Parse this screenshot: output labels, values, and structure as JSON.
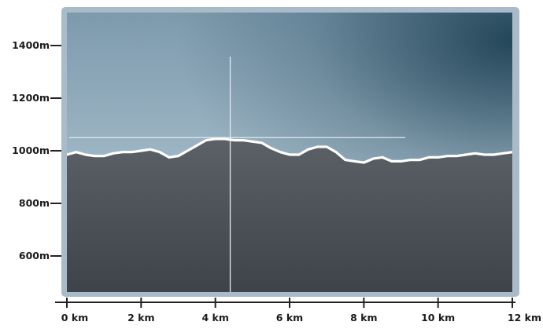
{
  "chart_data": {
    "type": "area",
    "title": "",
    "xlabel": "",
    "ylabel": "",
    "x_unit": "km",
    "y_unit": "m",
    "xlim": [
      0,
      12
    ],
    "ylim": [
      500,
      1500
    ],
    "x_ticks": [
      0,
      2,
      4,
      6,
      8,
      10,
      12
    ],
    "y_ticks": [
      600,
      800,
      1000,
      1200,
      1400
    ],
    "x_tick_labels": [
      "0 km",
      "2 km",
      "4 km",
      "6 km",
      "8 km",
      "10 km",
      "12 km"
    ],
    "y_tick_labels": [
      "600m",
      "800m",
      "1000m",
      "1200m",
      "1400m"
    ],
    "grid": false,
    "legend": "none",
    "series": [
      {
        "x": [
          0,
          0.25,
          0.5,
          0.75,
          1.0,
          1.25,
          1.5,
          1.75,
          2.0,
          2.25,
          2.5,
          2.75,
          3.0,
          3.25,
          3.5,
          3.75,
          4.0,
          4.25,
          4.5,
          4.75,
          5.0,
          5.25,
          5.5,
          5.75,
          6.0,
          6.25,
          6.5,
          6.75,
          7.0,
          7.25,
          7.5,
          7.75,
          8.0,
          8.25,
          8.5,
          8.75,
          9.0,
          9.25,
          9.5,
          9.75,
          10.0,
          10.25,
          10.5,
          10.75,
          11.0,
          11.25,
          11.5,
          11.75,
          12.0
        ],
        "values": [
          985,
          995,
          985,
          980,
          980,
          990,
          995,
          995,
          1000,
          1005,
          995,
          975,
          980,
          1000,
          1020,
          1040,
          1045,
          1045,
          1040,
          1040,
          1035,
          1030,
          1010,
          995,
          985,
          985,
          1005,
          1015,
          1015,
          995,
          965,
          960,
          955,
          970,
          975,
          960,
          960,
          965,
          965,
          975,
          975,
          980,
          980,
          985,
          990,
          985,
          985,
          990,
          995
        ]
      }
    ],
    "annotations": [
      {
        "type": "crosshair",
        "x": 4.4,
        "y": 1050
      }
    ],
    "colors": {
      "sky_top": "#7d9aad",
      "sky_mid": "#9fb7c6",
      "sky_dark": "#1f4255",
      "ground_top": "#5b6166",
      "ground_bottom": "#3d4349",
      "frame": "#a9bac8",
      "profile_line": "#ffffff",
      "axis": "#222222"
    }
  }
}
